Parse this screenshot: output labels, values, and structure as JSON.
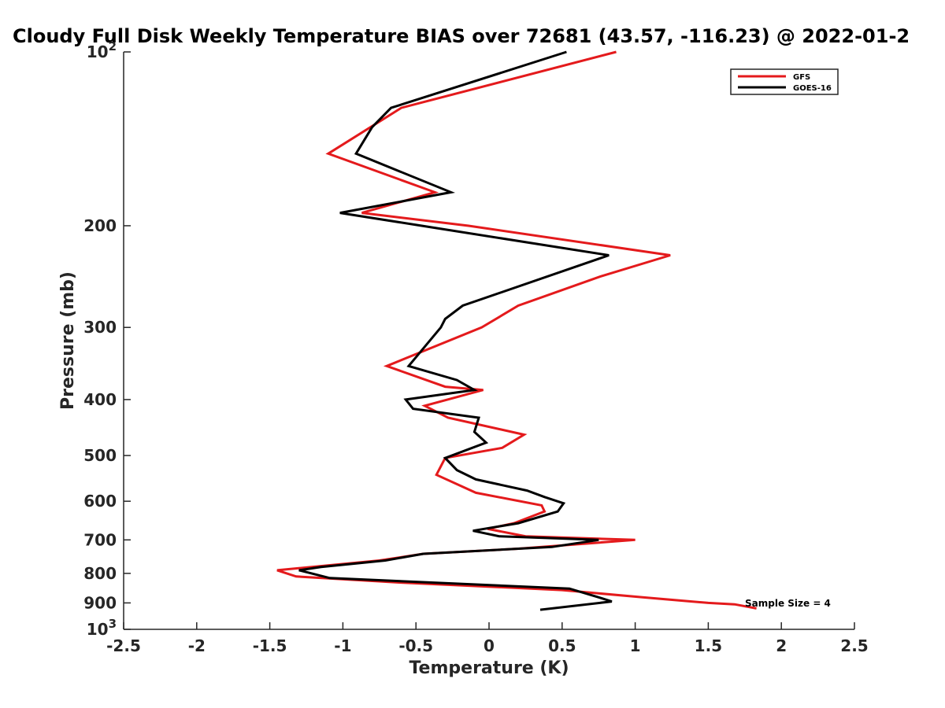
{
  "chart_data": {
    "type": "line",
    "title": "Cloudy Full Disk Weekly Temperature BIAS over 72681 (43.57, -116.23) @ 2022-01-2",
    "xlabel": "Temperature (K)",
    "ylabel": "Pressure (mb)",
    "xlim": [
      -2.5,
      2.5
    ],
    "ylim": [
      1000,
      100
    ],
    "y_scale": "log",
    "y_reversed": true,
    "x_ticks": [
      -2.5,
      -2,
      -1.5,
      -1,
      -0.5,
      0,
      0.5,
      1,
      1.5,
      2,
      2.5
    ],
    "x_tick_labels": [
      "-2.5",
      "-2",
      "-1.5",
      "-1",
      "-0.5",
      "0",
      "0.5",
      "1",
      "1.5",
      "2",
      "2.5"
    ],
    "y_ticks": [
      100,
      200,
      300,
      400,
      500,
      600,
      700,
      800,
      900,
      1000
    ],
    "y_tick_labels": [
      {
        "base": "10",
        "exp": "2"
      },
      {
        "base": "200"
      },
      {
        "base": "300"
      },
      {
        "base": "400"
      },
      {
        "base": "500"
      },
      {
        "base": "600"
      },
      {
        "base": "700"
      },
      {
        "base": "800"
      },
      {
        "base": "900"
      },
      {
        "base": "10",
        "exp": "3"
      }
    ],
    "grid": false,
    "legend_position": "top-right",
    "annotation": "Sample Size = 4",
    "series": [
      {
        "name": "GFS",
        "color": "#e41a1c",
        "points": [
          [
            0.87,
            100
          ],
          [
            -0.6,
            125
          ],
          [
            -1.1,
            150
          ],
          [
            -0.37,
            175
          ],
          [
            -0.87,
            190
          ],
          [
            -0.14,
            200
          ],
          [
            1.24,
            225
          ],
          [
            0.76,
            245
          ],
          [
            0.2,
            275
          ],
          [
            -0.05,
            300
          ],
          [
            -0.7,
            350
          ],
          [
            -0.3,
            380
          ],
          [
            -0.04,
            385
          ],
          [
            -0.44,
            410
          ],
          [
            -0.28,
            430
          ],
          [
            0.24,
            460
          ],
          [
            0.09,
            485
          ],
          [
            -0.3,
            505
          ],
          [
            -0.36,
            540
          ],
          [
            -0.09,
            580
          ],
          [
            0.36,
            610
          ],
          [
            0.38,
            625
          ],
          [
            0.17,
            655
          ],
          [
            -0.01,
            670
          ],
          [
            0.25,
            690
          ],
          [
            1.0,
            700
          ],
          [
            0.2,
            725
          ],
          [
            -0.45,
            740
          ],
          [
            -0.75,
            760
          ],
          [
            -1.45,
            790
          ],
          [
            -1.32,
            810
          ],
          [
            -0.6,
            830
          ],
          [
            0.5,
            855
          ],
          [
            1.05,
            880
          ],
          [
            1.5,
            900
          ],
          [
            1.68,
            905
          ],
          [
            1.83,
            920
          ]
        ]
      },
      {
        "name": "GOES-16",
        "color": "#000000",
        "points": [
          [
            0.53,
            100
          ],
          [
            -0.67,
            125
          ],
          [
            -0.8,
            135
          ],
          [
            -0.91,
            150
          ],
          [
            -0.26,
            175
          ],
          [
            -1.02,
            190
          ],
          [
            -0.46,
            200
          ],
          [
            0.82,
            225
          ],
          [
            -0.18,
            275
          ],
          [
            -0.3,
            290
          ],
          [
            -0.33,
            300
          ],
          [
            -0.55,
            350
          ],
          [
            -0.22,
            370
          ],
          [
            -0.1,
            385
          ],
          [
            -0.57,
            400
          ],
          [
            -0.52,
            415
          ],
          [
            -0.07,
            430
          ],
          [
            -0.1,
            455
          ],
          [
            -0.02,
            475
          ],
          [
            -0.3,
            505
          ],
          [
            -0.22,
            530
          ],
          [
            -0.09,
            550
          ],
          [
            0.26,
            575
          ],
          [
            0.38,
            590
          ],
          [
            0.51,
            605
          ],
          [
            0.47,
            625
          ],
          [
            0.2,
            655
          ],
          [
            -0.11,
            675
          ],
          [
            0.07,
            690
          ],
          [
            0.75,
            700
          ],
          [
            0.43,
            720
          ],
          [
            -0.45,
            740
          ],
          [
            -0.71,
            760
          ],
          [
            -1.15,
            780
          ],
          [
            -1.3,
            790
          ],
          [
            -1.09,
            815
          ],
          [
            0.55,
            850
          ],
          [
            0.75,
            880
          ],
          [
            0.84,
            895
          ],
          [
            0.35,
            925
          ]
        ]
      }
    ]
  }
}
